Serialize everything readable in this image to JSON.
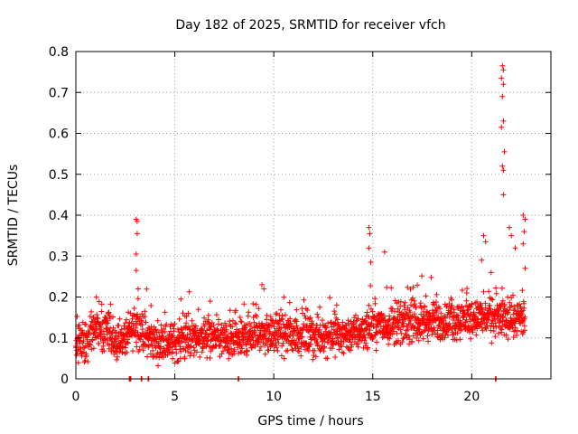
{
  "chart_data": {
    "type": "scatter",
    "title": "Day 182 of 2025, SRMTID for receiver vfch",
    "xlabel": "GPS time / hours",
    "ylabel": "SRMTID / TECUs",
    "xlim": [
      0,
      24
    ],
    "ylim": [
      0,
      0.8
    ],
    "xticks": [
      0,
      5,
      10,
      15,
      20
    ],
    "xtick_labels": [
      "0",
      "5",
      "10",
      "15",
      "20"
    ],
    "yticks": [
      0,
      0.1,
      0.2,
      0.3,
      0.4,
      0.5,
      0.6,
      0.7,
      0.8
    ],
    "ytick_labels": [
      "0",
      "0.1",
      "0.2",
      "0.3",
      "0.4",
      "0.5",
      "0.6",
      "0.7",
      "0.8"
    ],
    "grid": true,
    "marker": "plus",
    "color": "#ff0000",
    "baseline_trend": [
      {
        "x": 0.0,
        "y": 0.08
      },
      {
        "x": 0.5,
        "y": 0.09
      },
      {
        "x": 1.0,
        "y": 0.12
      },
      {
        "x": 1.5,
        "y": 0.11
      },
      {
        "x": 2.0,
        "y": 0.09
      },
      {
        "x": 2.5,
        "y": 0.1
      },
      {
        "x": 3.0,
        "y": 0.13
      },
      {
        "x": 3.5,
        "y": 0.11
      },
      {
        "x": 4.0,
        "y": 0.09
      },
      {
        "x": 5.0,
        "y": 0.09
      },
      {
        "x": 6.0,
        "y": 0.1
      },
      {
        "x": 7.0,
        "y": 0.1
      },
      {
        "x": 8.0,
        "y": 0.09
      },
      {
        "x": 9.0,
        "y": 0.11
      },
      {
        "x": 10.0,
        "y": 0.11
      },
      {
        "x": 11.0,
        "y": 0.11
      },
      {
        "x": 12.0,
        "y": 0.1
      },
      {
        "x": 13.0,
        "y": 0.11
      },
      {
        "x": 14.0,
        "y": 0.11
      },
      {
        "x": 15.0,
        "y": 0.13
      },
      {
        "x": 16.0,
        "y": 0.13
      },
      {
        "x": 17.0,
        "y": 0.14
      },
      {
        "x": 18.0,
        "y": 0.14
      },
      {
        "x": 19.0,
        "y": 0.14
      },
      {
        "x": 20.0,
        "y": 0.15
      },
      {
        "x": 21.0,
        "y": 0.15
      },
      {
        "x": 22.0,
        "y": 0.15
      },
      {
        "x": 22.7,
        "y": 0.14
      }
    ],
    "notable_points": [
      {
        "x": 3.05,
        "y": 0.39
      },
      {
        "x": 3.1,
        "y": 0.385
      },
      {
        "x": 3.1,
        "y": 0.355
      },
      {
        "x": 3.05,
        "y": 0.305
      },
      {
        "x": 3.05,
        "y": 0.265
      },
      {
        "x": 3.15,
        "y": 0.22
      },
      {
        "x": 9.4,
        "y": 0.23
      },
      {
        "x": 9.5,
        "y": 0.22
      },
      {
        "x": 14.8,
        "y": 0.37
      },
      {
        "x": 14.85,
        "y": 0.355
      },
      {
        "x": 14.8,
        "y": 0.32
      },
      {
        "x": 14.9,
        "y": 0.285
      },
      {
        "x": 15.6,
        "y": 0.31
      },
      {
        "x": 20.6,
        "y": 0.35
      },
      {
        "x": 20.7,
        "y": 0.335
      },
      {
        "x": 20.5,
        "y": 0.29
      },
      {
        "x": 21.55,
        "y": 0.765
      },
      {
        "x": 21.6,
        "y": 0.755
      },
      {
        "x": 21.5,
        "y": 0.735
      },
      {
        "x": 21.6,
        "y": 0.72
      },
      {
        "x": 21.55,
        "y": 0.69
      },
      {
        "x": 21.6,
        "y": 0.63
      },
      {
        "x": 21.5,
        "y": 0.615
      },
      {
        "x": 21.65,
        "y": 0.555
      },
      {
        "x": 21.55,
        "y": 0.52
      },
      {
        "x": 21.6,
        "y": 0.51
      },
      {
        "x": 21.6,
        "y": 0.45
      },
      {
        "x": 21.9,
        "y": 0.37
      },
      {
        "x": 22.0,
        "y": 0.35
      },
      {
        "x": 22.2,
        "y": 0.32
      },
      {
        "x": 22.6,
        "y": 0.4
      },
      {
        "x": 22.7,
        "y": 0.39
      },
      {
        "x": 22.65,
        "y": 0.36
      },
      {
        "x": 22.6,
        "y": 0.33
      },
      {
        "x": 22.7,
        "y": 0.27
      }
    ],
    "zero_points": [
      {
        "x": 2.7,
        "y": 0.0
      },
      {
        "x": 2.75,
        "y": 0.0
      },
      {
        "x": 3.3,
        "y": 0.0
      },
      {
        "x": 3.65,
        "y": 0.0
      },
      {
        "x": 8.2,
        "y": 0.0
      },
      {
        "x": 21.2,
        "y": 0.0
      }
    ],
    "sample_count": 2100
  }
}
